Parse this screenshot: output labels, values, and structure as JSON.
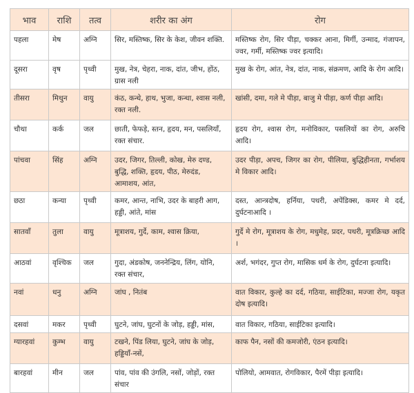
{
  "table": {
    "header": [
      "भाव",
      "राशि",
      "तत्व",
      "शरीर का अंग",
      "रोग"
    ],
    "rows": [
      [
        "पहला",
        "मेष",
        "अग्नि",
        "सिर, मस्तिष्क, सिर के केश, जीवन शक्ति.",
        "मस्तिष्क रोग, सिर पीड़ा, चक्कर आना, मिर्गी, उन्माद, गंजापन, ज्वर, गर्मी, मस्तिष्क ज्वर इत्यादि।"
      ],
      [
        "दूसरा",
        "वृष",
        "पृथ्वी",
        "मुख, नेत्र, चेहरा, नाक, दांत, जीभ, होंठ, ग्रास नली",
        "मुख के रोग, आंत, नेत्र, दांत, नाक, संक्रमण, आदि के रोग आदि।"
      ],
      [
        "तीसरा",
        "मिथुन",
        "वायु",
        "कंठ, कन्धे, हाथ, भुजा, कन्धा, श्वास नली, रक्त नली.",
        "खांसी, दमा, गले मे पीड़ा, बाजु मे पीड़ा, कर्ण पीड़ा आदि।"
      ],
      [
        "चौथा",
        "कर्क",
        "जल",
        "छाती, फेफड़े, स्तन, हृदय, मन, पसलियाँ, रक्त संचार.",
        "हृदय रोग, श्वास रोग, मनोविकार, पसलियों का रोग, अरुचि आदि।"
      ],
      [
        "पांचवा",
        "सिंह",
        "अग्नि",
        "उदर, जिगर, तिल्ली, कोख, मेरु दण्ड, बुद्धि, शक्ति, हृदय, पीठ, मेरुदंड, आमाशय, आंत,",
        "उदर पीड़ा, अपच, जिगर का रोग, पीलिया, बुद्धिहीनता, गर्भाशय मे विकार आदि।"
      ],
      [
        "छठा",
        "कन्या",
        "पृथ्वी",
        "कमर, आन्त, नाभि, उदर के बाहरी आग, हड्डी, आंते, मांस",
        "दस्त, आन्त्रदोष, हर्निया, पथरी, अपेंडिक्स, कमर मे दर्द, दुर्घटनाआदि ।"
      ],
      [
        "सातवाँ",
        "तुला",
        "वायु",
        "मूत्राशय, गुर्दे, काम, श्वास क्रिया,",
        "गुर्दे मे रोग, मूत्राशय के रोग, मधुमेह, प्रदर, पथरी, मूत्रक्रिच्छ आदि ।"
      ],
      [
        "आठवां",
        "वृश्चिक",
        "जल",
        "गुदा, अंडकोष, जननेन्द्रिय, लिंग, योनि, रक्त संचार,",
        "अर्श, भगंदर, गुप्त रोग, मासिक धर्म के रोग, दुर्घटना इत्यादि।"
      ],
      [
        "नवां",
        "धनु",
        "अग्नि",
        "जांघ , नितंब",
        "वात विकार, कुल्हे का दर्द, गठिया, साईटिका, मज्जा रोग, यकृत दोष इत्यादि।"
      ],
      [
        "दसवां",
        "मकर",
        "पृथ्वी",
        "घुटने, जांघ, घुटनों के जोड़, हड्डी, मांस,",
        "वात विकार, गठिया, साईटिका इत्यादि।"
      ],
      [
        "ग्यारहवां",
        "कुम्भ",
        "वायु",
        "टखने, पिंड लिया, घुटने, जांघ के जोड़, हड्डियाँ-नसें,",
        "काफ पैन, नसों की कमजोरी, एंठन इत्यादि।"
      ],
      [
        "बारहवां",
        "मीन",
        "जल",
        "पांव, पांव की उंगलि, नसों, जोड़ों, रक्त संचार",
        "पोलियो, आमवात, रोगविकार, पैरमें पीड़ा इत्यादि।"
      ]
    ]
  }
}
